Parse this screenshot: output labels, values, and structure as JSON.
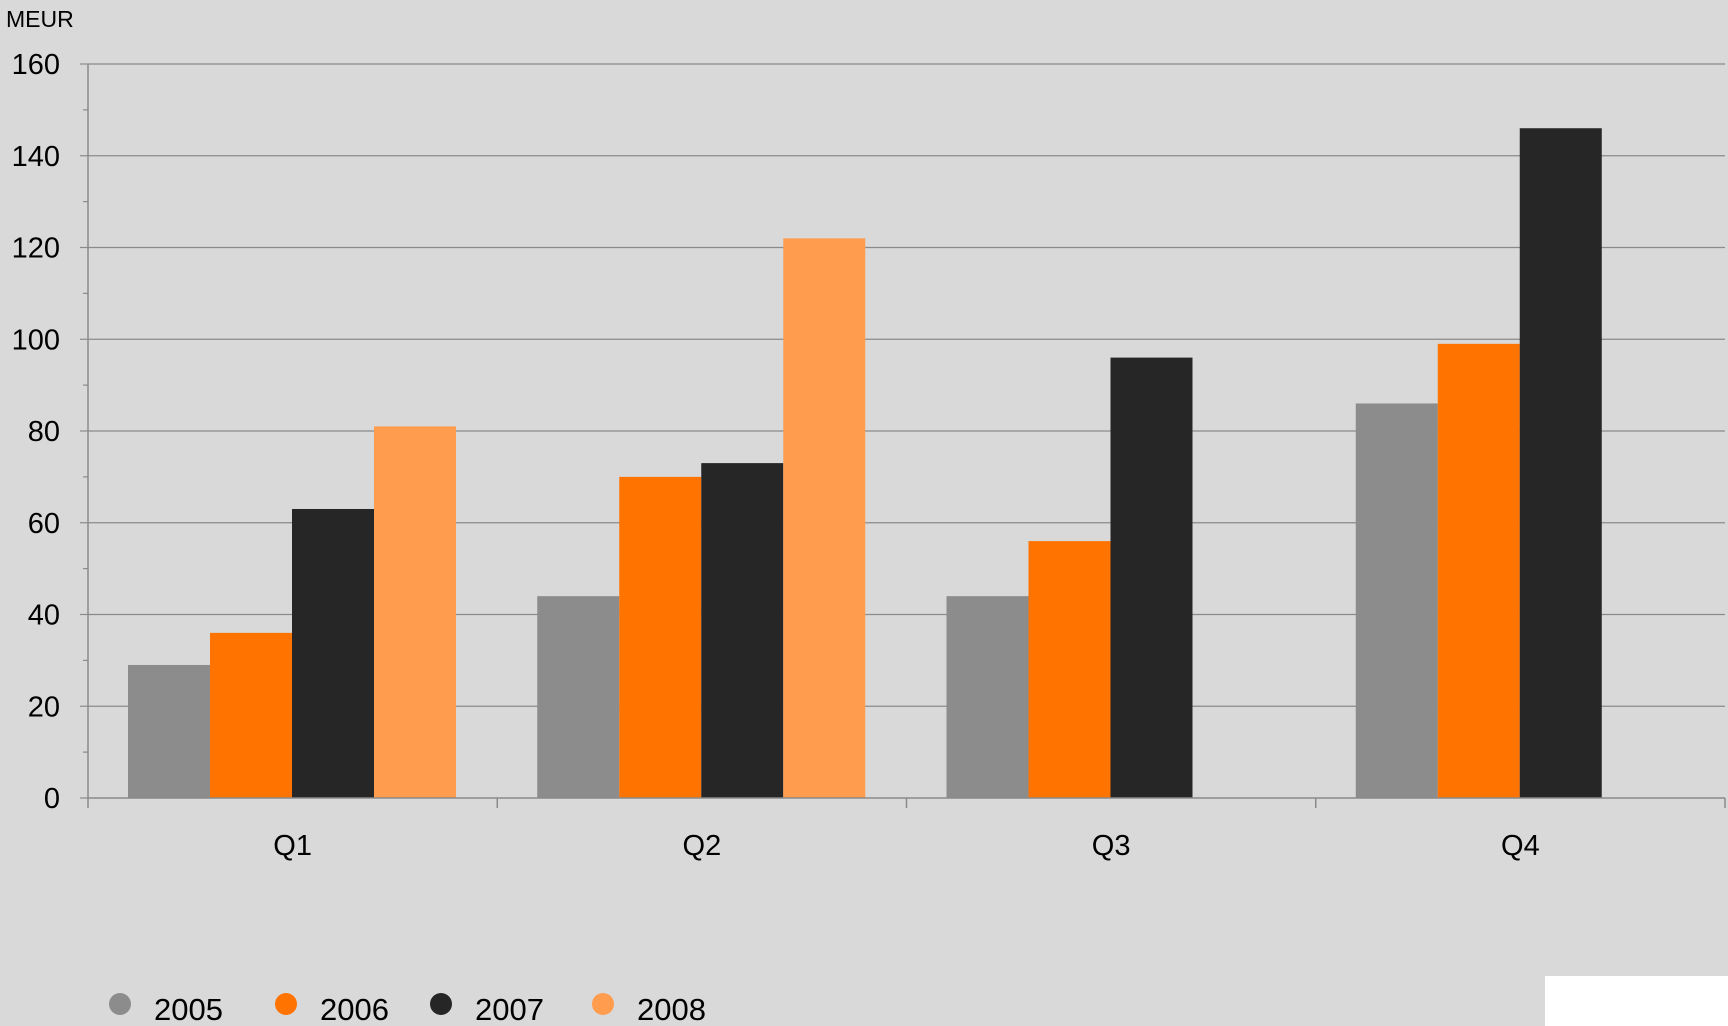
{
  "chart_data": {
    "type": "bar",
    "unit_label": "MEUR",
    "categories": [
      "Q1",
      "Q2",
      "Q3",
      "Q4"
    ],
    "ylim": [
      0,
      160
    ],
    "y_ticks": [
      0,
      20,
      40,
      60,
      80,
      100,
      120,
      140,
      160
    ],
    "y_tick_labels": [
      "0",
      "20",
      "40",
      "60",
      "80",
      "100",
      "120",
      "140",
      "160"
    ],
    "grid": true,
    "legend_position": "bottom-left",
    "series": [
      {
        "name": "2005",
        "color": "#8c8c8c",
        "values": [
          29,
          44,
          44,
          86
        ]
      },
      {
        "name": "2006",
        "color": "#ff7300",
        "values": [
          36,
          70,
          56,
          99
        ]
      },
      {
        "name": "2007",
        "color": "#262626",
        "values": [
          63,
          73,
          96,
          146
        ]
      },
      {
        "name": "2008",
        "color": "#ff9c4d",
        "values": [
          81,
          122,
          null,
          null
        ]
      }
    ]
  }
}
